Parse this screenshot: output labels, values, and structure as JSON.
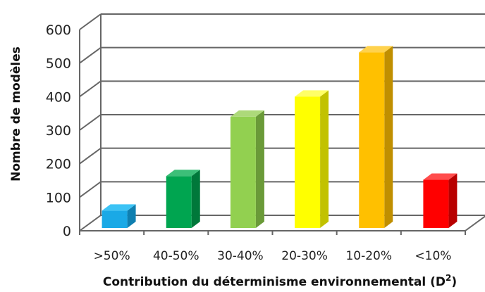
{
  "chart_data": {
    "type": "bar",
    "categories": [
      ">50%",
      "40-50%",
      "30-40%",
      "20-30%",
      "10-20%",
      "<10%"
    ],
    "values": [
      60,
      163,
      340,
      400,
      532,
      152
    ],
    "colors": [
      "#1aa9e6",
      "#00a550",
      "#92d050",
      "#ffff00",
      "#ffc000",
      "#ff0000"
    ],
    "side_colors": [
      "#0f7fb0",
      "#00783a",
      "#6a9a38",
      "#c2c200",
      "#c08f00",
      "#b80000"
    ],
    "top_colors": [
      "#3cc3f5",
      "#3cbf78",
      "#add97a",
      "#ffff66",
      "#ffd24d",
      "#ff4d4d"
    ],
    "ylim": [
      0,
      600
    ],
    "yticks": [
      0,
      100,
      200,
      300,
      400,
      500,
      600
    ],
    "ylabel": "Nombre de modèles",
    "xlabel": "Contribution du déterminisme environnemental (D",
    "xlabel_sup": "2",
    "xlabel_end": ")",
    "grid": true,
    "style": "3d"
  }
}
